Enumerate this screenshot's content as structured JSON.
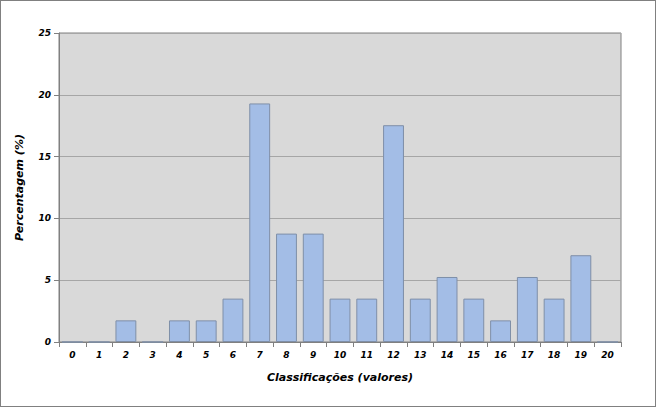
{
  "chart_data": {
    "type": "bar",
    "x_label": "Classificações (valores)",
    "y_label": "Percentagem (%)",
    "categories": [
      "0",
      "1",
      "2",
      "3",
      "4",
      "5",
      "6",
      "7",
      "8",
      "9",
      "10",
      "11",
      "12",
      "13",
      "14",
      "15",
      "16",
      "17",
      "18",
      "19",
      "20"
    ],
    "values": [
      0,
      0,
      1.75,
      0,
      1.75,
      1.75,
      3.51,
      19.3,
      8.77,
      8.77,
      3.51,
      3.51,
      17.54,
      3.51,
      5.26,
      3.51,
      1.75,
      5.26,
      3.51,
      7.02,
      0
    ],
    "color": "#a3bde6",
    "ylim": [
      0,
      25
    ],
    "yticks": [
      0,
      5,
      10,
      15,
      20,
      25
    ],
    "grid": true
  }
}
